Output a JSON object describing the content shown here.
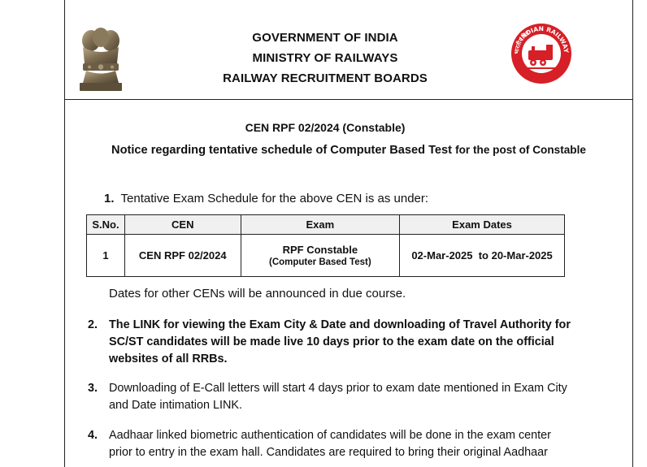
{
  "header": {
    "line1": "GOVERNMENT OF INDIA",
    "line2": "MINISTRY OF RAILWAYS",
    "line3": "RAILWAY RECRUITMENT BOARDS",
    "left_logo_icon": "ashoka-emblem-icon",
    "right_logo_icon": "indian-railways-logo-icon",
    "right_logo_text": "INDIAN RAILWAYS",
    "right_logo_hindi": "भारतीय रेल",
    "brand_red": "#d61f26"
  },
  "notice": {
    "cen": "CEN RPF 02/2024 (Constable)",
    "title_main": "Notice regarding tentative schedule of Computer Based Test",
    "title_tail": "for the post of Constable"
  },
  "section1": {
    "num": "1.",
    "text": "Tentative Exam Schedule for the above CEN is as under:",
    "table": {
      "headers": [
        "S.No.",
        "CEN",
        "Exam",
        "Exam Dates"
      ],
      "rows": [
        {
          "sno": "1",
          "cen": "CEN RPF 02/2024",
          "exam": "RPF Constable",
          "exam_sub": "(Computer Based Test)",
          "dates": "02-Mar-2025  to 20-Mar-2025"
        }
      ]
    },
    "note": "Dates for other CENs will be announced in due course."
  },
  "items": [
    {
      "num": "2.",
      "text": "The LINK for viewing the Exam City & Date and downloading of Travel Authority for SC/ST candidates will be made live 10 days prior to the exam date on the official websites of all RRBs."
    },
    {
      "num": "3.",
      "text": "Downloading of E-Call letters will start 4 days prior to exam date mentioned in Exam City and Date intimation LINK."
    },
    {
      "num": "4.",
      "text": "Aadhaar linked biometric authentication of candidates will be done in the exam center prior to entry in the exam hall. Candidates are required to bring their original Aadhaar"
    }
  ]
}
